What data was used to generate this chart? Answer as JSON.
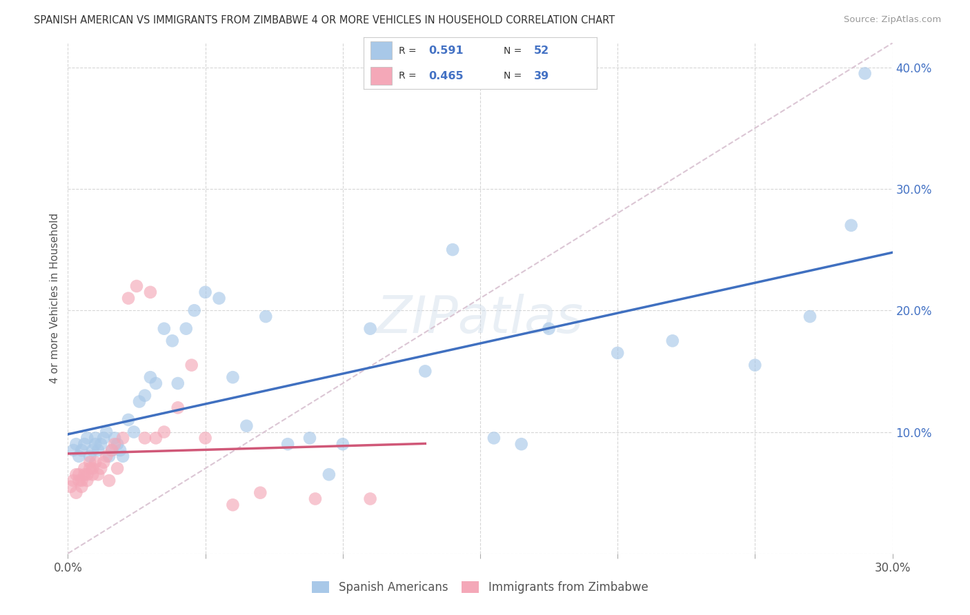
{
  "title": "SPANISH AMERICAN VS IMMIGRANTS FROM ZIMBABWE 4 OR MORE VEHICLES IN HOUSEHOLD CORRELATION CHART",
  "source": "Source: ZipAtlas.com",
  "ylabel": "4 or more Vehicles in Household",
  "xlim": [
    0.0,
    0.3
  ],
  "ylim": [
    0.0,
    0.42
  ],
  "xticks": [
    0.0,
    0.05,
    0.1,
    0.15,
    0.2,
    0.25,
    0.3
  ],
  "yticks": [
    0.0,
    0.1,
    0.2,
    0.3,
    0.4
  ],
  "legend1_r": "0.591",
  "legend1_n": "52",
  "legend2_r": "0.465",
  "legend2_n": "39",
  "blue_color": "#a8c8e8",
  "pink_color": "#f4a8b8",
  "blue_line_color": "#4070c0",
  "pink_line_color": "#d05878",
  "diag_line_color": "#d8c0d0",
  "watermark": "ZIPatlas",
  "blue_scatter_x": [
    0.002,
    0.003,
    0.004,
    0.005,
    0.006,
    0.007,
    0.008,
    0.009,
    0.01,
    0.01,
    0.011,
    0.012,
    0.013,
    0.014,
    0.015,
    0.016,
    0.017,
    0.018,
    0.019,
    0.02,
    0.022,
    0.024,
    0.026,
    0.028,
    0.03,
    0.032,
    0.035,
    0.038,
    0.04,
    0.043,
    0.046,
    0.05,
    0.055,
    0.06,
    0.065,
    0.072,
    0.08,
    0.088,
    0.095,
    0.1,
    0.11,
    0.13,
    0.14,
    0.155,
    0.165,
    0.175,
    0.2,
    0.22,
    0.25,
    0.27,
    0.285,
    0.29
  ],
  "blue_scatter_y": [
    0.085,
    0.09,
    0.08,
    0.085,
    0.09,
    0.095,
    0.08,
    0.085,
    0.09,
    0.095,
    0.085,
    0.09,
    0.095,
    0.1,
    0.08,
    0.085,
    0.095,
    0.09,
    0.085,
    0.08,
    0.11,
    0.1,
    0.125,
    0.13,
    0.145,
    0.14,
    0.185,
    0.175,
    0.14,
    0.185,
    0.2,
    0.215,
    0.21,
    0.145,
    0.105,
    0.195,
    0.09,
    0.095,
    0.065,
    0.09,
    0.185,
    0.15,
    0.25,
    0.095,
    0.09,
    0.185,
    0.165,
    0.175,
    0.155,
    0.195,
    0.27,
    0.395
  ],
  "pink_scatter_x": [
    0.001,
    0.002,
    0.003,
    0.003,
    0.004,
    0.004,
    0.005,
    0.005,
    0.006,
    0.006,
    0.007,
    0.007,
    0.008,
    0.008,
    0.009,
    0.009,
    0.01,
    0.011,
    0.012,
    0.013,
    0.014,
    0.015,
    0.016,
    0.017,
    0.018,
    0.02,
    0.022,
    0.025,
    0.028,
    0.03,
    0.032,
    0.035,
    0.04,
    0.045,
    0.05,
    0.06,
    0.07,
    0.09,
    0.11
  ],
  "pink_scatter_y": [
    0.055,
    0.06,
    0.065,
    0.05,
    0.06,
    0.065,
    0.055,
    0.06,
    0.065,
    0.07,
    0.06,
    0.065,
    0.07,
    0.075,
    0.065,
    0.07,
    0.075,
    0.065,
    0.07,
    0.075,
    0.08,
    0.06,
    0.085,
    0.09,
    0.07,
    0.095,
    0.21,
    0.22,
    0.095,
    0.215,
    0.095,
    0.1,
    0.12,
    0.155,
    0.095,
    0.04,
    0.05,
    0.045,
    0.045
  ]
}
